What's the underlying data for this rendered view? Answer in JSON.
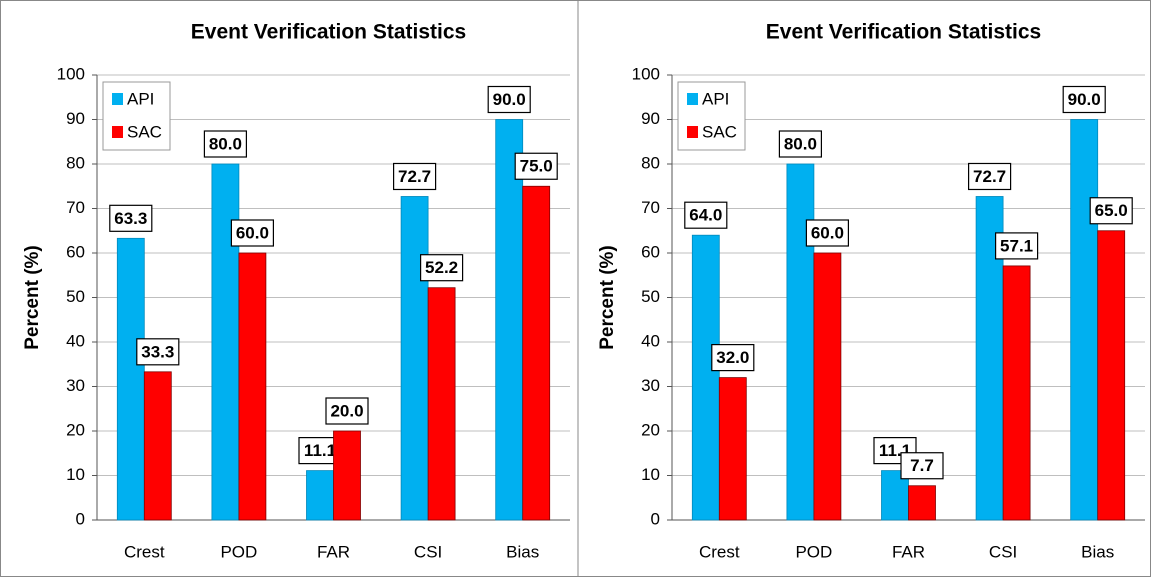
{
  "chart_data": [
    {
      "type": "bar",
      "title": "Event Verification Statistics",
      "y_label": "Percent (%)",
      "categories": [
        "Crest",
        "POD",
        "FAR",
        "CSI",
        "Bias"
      ],
      "series": [
        {
          "name": "API",
          "color": "#00b0f0",
          "values": [
            63.3,
            80,
            11.1,
            72.7,
            90
          ],
          "value_labels": [
            "63.3",
            "80.0",
            "11.1",
            "72.7",
            "90.0"
          ]
        },
        {
          "name": "SAC",
          "color": "#ff0000",
          "values": [
            33.3,
            60,
            20,
            52.2,
            75
          ],
          "value_labels": [
            "33.3",
            "60.0",
            "20.0",
            "52.2",
            "75.0"
          ]
        }
      ],
      "ylim": [
        0,
        100
      ],
      "yticks": [
        0,
        10,
        20,
        30,
        40,
        50,
        60,
        70,
        80,
        90,
        100
      ],
      "grid": true,
      "legend": "upper left"
    },
    {
      "type": "bar",
      "title": "Event Verification Statistics",
      "y_label": "Percent (%)",
      "categories": [
        "Crest",
        "POD",
        "FAR",
        "CSI",
        "Bias"
      ],
      "series": [
        {
          "name": "API",
          "color": "#00b0f0",
          "values": [
            64,
            80,
            11.1,
            72.7,
            90
          ],
          "value_labels": [
            "64.0",
            "80.0",
            "11.1",
            "72.7",
            "90.0"
          ]
        },
        {
          "name": "SAC",
          "color": "#ff0000",
          "values": [
            32,
            60,
            7.7,
            57.1,
            65
          ],
          "value_labels": [
            "32.0",
            "60.0",
            "7.7",
            "57.1",
            "65.0"
          ]
        }
      ],
      "ylim": [
        0,
        100
      ],
      "yticks": [
        0,
        10,
        20,
        30,
        40,
        50,
        60,
        70,
        80,
        90,
        100
      ],
      "grid": true,
      "legend": "upper left"
    }
  ]
}
